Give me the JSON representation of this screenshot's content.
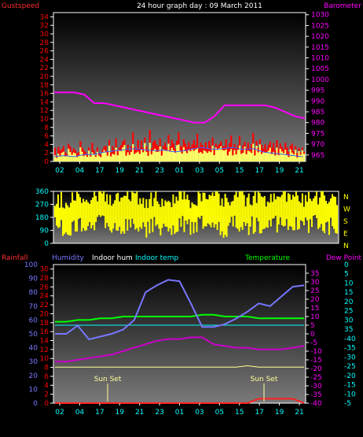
{
  "header": {
    "left_label": "Gustspeed",
    "title": "24 hour graph day : 09 March 2011",
    "right_label": "Barometer"
  },
  "colors": {
    "gust": "#ff0000",
    "wind": "#ffff66",
    "baro": "#ff00ff",
    "dir": "#ffff00",
    "rain": "#ff2020",
    "humidity": "#7777ff",
    "indoor_hum": "#ffffff",
    "indoor_temp": "#00ffff",
    "temperature": "#00ff00",
    "dew_point": "#cc00cc",
    "sun_marker": "#ffff99",
    "axis_cyan": "#00ffff",
    "axis_magenta": "#ff00ff",
    "axis_red": "#ff0000",
    "axis_blue": "#7777ff"
  },
  "time_ticks": [
    "02",
    "04",
    "17",
    "19",
    "21",
    "23",
    "01",
    "03",
    "05",
    "15",
    "17",
    "19",
    "21"
  ],
  "chart_data": [
    {
      "type": "line",
      "title": "24 hour graph day : 09 March 2011",
      "y_left": {
        "label": "Gustspeed",
        "ticks": [
          0,
          2,
          4,
          6,
          8,
          10,
          12,
          14,
          16,
          18,
          20,
          22,
          24,
          26,
          28,
          30,
          32,
          34
        ],
        "ylim": [
          0,
          35
        ]
      },
      "y_right": {
        "label": "Barometer",
        "ticks": [
          965,
          970,
          975,
          980,
          985,
          990,
          995,
          1000,
          1005,
          1010,
          1015,
          1020,
          1025,
          1030
        ],
        "ylim": [
          962,
          1031
        ]
      },
      "x_ticks": [
        "02",
        "04",
        "17",
        "19",
        "21",
        "23",
        "01",
        "03",
        "05",
        "15",
        "17",
        "19",
        "21"
      ],
      "series": [
        {
          "name": "Gustspeed",
          "axis": "left",
          "values": [
            2,
            2.5,
            2,
            3,
            3,
            4,
            4.5,
            5,
            5.5,
            5,
            4.5,
            5,
            4,
            4.5,
            5.5,
            6,
            5,
            5.5,
            6,
            5,
            5.5,
            4,
            3.5,
            3,
            2.5,
            2
          ]
        },
        {
          "name": "Barometer",
          "axis": "right",
          "values": [
            994,
            994,
            994,
            993,
            989,
            989,
            988,
            987,
            986,
            985,
            984,
            983,
            982,
            981,
            980,
            980,
            983,
            988,
            988,
            988,
            988,
            988,
            987,
            985,
            983,
            982
          ]
        }
      ]
    },
    {
      "type": "line",
      "y_left": {
        "ticks": [
          0,
          90,
          180,
          270,
          360
        ],
        "ylim": [
          0,
          360
        ]
      },
      "y_right": {
        "ticks": [
          "N",
          "W",
          "S",
          "E",
          "N"
        ]
      },
      "x_ticks": [],
      "series": [
        {
          "name": "Wind direction",
          "axis": "left",
          "values": [
            220,
            200,
            240,
            210,
            250,
            190,
            230,
            260,
            200,
            240,
            180,
            250,
            210,
            240,
            230,
            200,
            260,
            220,
            240,
            210,
            250,
            230,
            220,
            240,
            230,
            210
          ]
        }
      ]
    },
    {
      "type": "line",
      "legend": [
        "Rainfall",
        "Humidity",
        "Indoor hum",
        "Indoor temp",
        "Temperature",
        "Dew Point"
      ],
      "axes": {
        "rainfall": {
          "label": "Rainfall",
          "ticks": [
            0,
            2,
            4,
            6,
            8,
            10,
            12,
            14,
            16,
            18,
            20,
            22,
            24,
            26,
            28,
            30
          ]
        },
        "humidity": {
          "label": "Humidity",
          "ticks": [
            0,
            10,
            20,
            30,
            40,
            50,
            60,
            70,
            80,
            90,
            100
          ]
        },
        "temperature": {
          "label": "Temperature",
          "ticks": [
            -40,
            -35,
            -30,
            -25,
            -20,
            -15,
            -10,
            -5,
            0,
            5,
            10,
            15,
            20,
            25,
            30,
            35
          ]
        },
        "dew_point": {
          "label": "Dew Point",
          "ticks": [
            -5,
            -10,
            -15,
            -20,
            -25,
            -30,
            -35,
            -40,
            35,
            30,
            25,
            20,
            15,
            10,
            5,
            0
          ]
        }
      },
      "x_ticks": [
        "02",
        "04",
        "17",
        "19",
        "21",
        "23",
        "01",
        "03",
        "05",
        "15",
        "17",
        "19",
        "21"
      ],
      "annotations": [
        "Sun Set",
        "Sun Set"
      ],
      "series": [
        {
          "name": "Humidity",
          "values": [
            50,
            50,
            56,
            46,
            48,
            50,
            53,
            60,
            80,
            85,
            89,
            88,
            72,
            55,
            55,
            57,
            61,
            66,
            72,
            70,
            77,
            84,
            85
          ]
        },
        {
          "name": "Indoor hum",
          "values": [
            26,
            26,
            26,
            26,
            26,
            26,
            26,
            26,
            26,
            26,
            26,
            26,
            26,
            26,
            26,
            26,
            26,
            27,
            26,
            26,
            26,
            26,
            26
          ]
        },
        {
          "name": "Indoor temp",
          "values": [
            5,
            5,
            5,
            5,
            5,
            5,
            5,
            5,
            5,
            5,
            5,
            5,
            5,
            5,
            5,
            5,
            5,
            5,
            5,
            5,
            5,
            5,
            5
          ]
        },
        {
          "name": "Temperature",
          "values": [
            7,
            7,
            8,
            8,
            9,
            9,
            10,
            10,
            10,
            10,
            10,
            10,
            10,
            11,
            11,
            10,
            10,
            10,
            9,
            9,
            9,
            9,
            9
          ]
        },
        {
          "name": "Dew Point",
          "values": [
            -16,
            -16,
            -15,
            -14,
            -13,
            -12,
            -10,
            -8,
            -6,
            -4,
            -3,
            -3,
            -2,
            -2,
            -6,
            -7,
            -8,
            -8,
            -9,
            -9,
            -9,
            -8,
            -7
          ]
        },
        {
          "name": "Rainfall",
          "values": [
            0,
            0,
            0,
            0,
            0,
            0,
            0,
            0,
            0,
            0,
            0,
            0,
            0,
            0,
            0,
            0,
            0,
            0,
            1,
            1,
            1,
            1,
            0
          ]
        }
      ]
    }
  ],
  "gust_series": [
    3.2,
    1.1,
    3.4,
    2.5,
    2.9,
    3.6,
    2.1,
    1.8,
    4.2,
    3.5,
    2.3,
    3.1,
    2.6,
    1.9,
    2.2,
    4.8,
    3.3,
    2.7,
    2.2,
    1.8,
    3.3,
    1.6,
    4.4,
    2.6,
    1.4,
    3.3,
    2.0,
    1.6,
    2.8,
    3.5,
    3.7,
    2.4,
    5.0,
    2.1,
    3.6,
    2.9,
    5.4,
    2.6,
    3.3,
    3.8,
    4.7,
    5.1,
    2.9,
    3.9,
    2.4,
    3.6,
    6.8,
    3.4,
    2.7,
    5.0,
    3.1,
    4.9,
    3.2,
    5.6,
    3.6,
    2.6,
    7.4,
    3.1,
    4.6,
    5.0,
    4.0,
    3.6,
    5.3,
    2.6,
    3.7,
    4.4,
    3.3,
    6.2,
    3.6,
    5.1,
    4.2,
    3.0,
    4.9,
    6.8,
    3.6,
    3.5,
    5.2,
    4.2,
    3.5,
    4.6,
    3.3,
    4.0,
    5.1,
    3.8,
    6.5,
    3.4,
    4.4,
    3.9,
    3.3,
    4.5,
    3.0,
    4.8,
    3.6,
    5.6,
    3.0,
    4.2,
    3.6,
    4.1,
    4.7,
    3.5,
    3.6,
    5.2,
    3.1,
    4.3,
    6.1,
    3.2,
    4.1,
    3.1,
    3.8,
    6.0,
    2.6,
    3.8,
    4.6,
    3.2,
    4.4,
    3.1,
    4.1,
    6.7,
    3.1,
    4.8,
    3.2,
    5.2,
    3.9,
    3.0,
    4.0,
    2.8,
    3.9,
    4.7,
    3.2,
    4.3,
    2.7,
    5.0,
    3.1,
    4.2,
    3.4,
    2.8,
    4.4,
    3.3,
    2.2,
    3.7,
    4.2,
    2.4,
    3.6,
    2.0,
    3.2,
    2.1,
    3.3,
    2.3
  ]
}
